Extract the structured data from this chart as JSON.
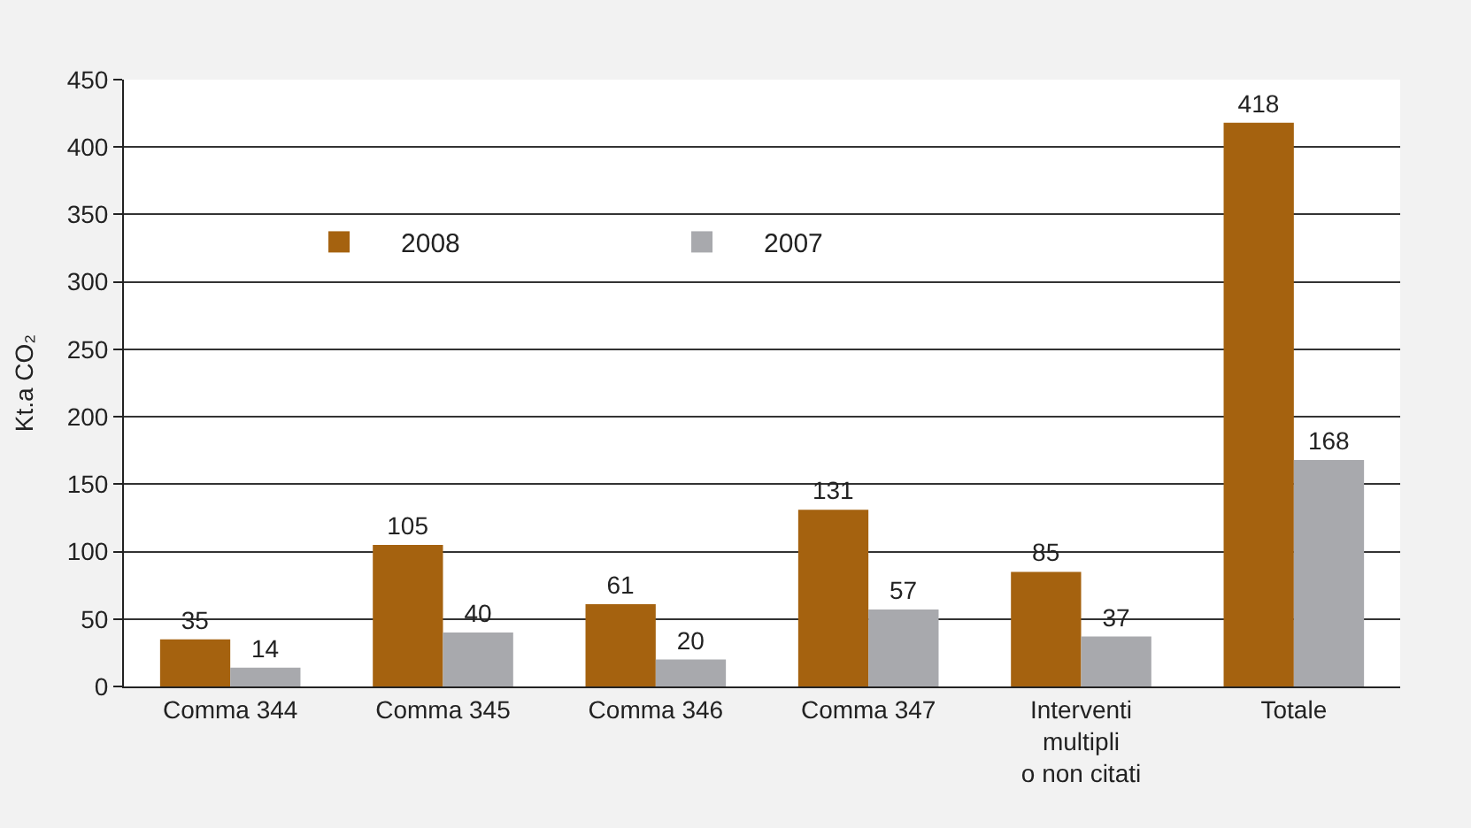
{
  "chart_data": {
    "type": "bar",
    "ylabel": "Kt.a CO₂",
    "categories": [
      "Comma 344",
      "Comma 345",
      "Comma 346",
      "Comma 347",
      "Interventi\nmultipli\no non citati",
      "Totale"
    ],
    "series": [
      {
        "name": "2008",
        "color": "#a5620f",
        "values": [
          35,
          105,
          61,
          131,
          85,
          418
        ]
      },
      {
        "name": "2007",
        "color": "#a8a9ad",
        "values": [
          14,
          40,
          20,
          57,
          37,
          168
        ]
      }
    ],
    "ylim": [
      0,
      450
    ],
    "yticks": [
      0,
      50,
      100,
      150,
      200,
      250,
      300,
      350,
      400,
      450
    ],
    "grid": "y",
    "legend": "top left",
    "data_labels": true
  }
}
